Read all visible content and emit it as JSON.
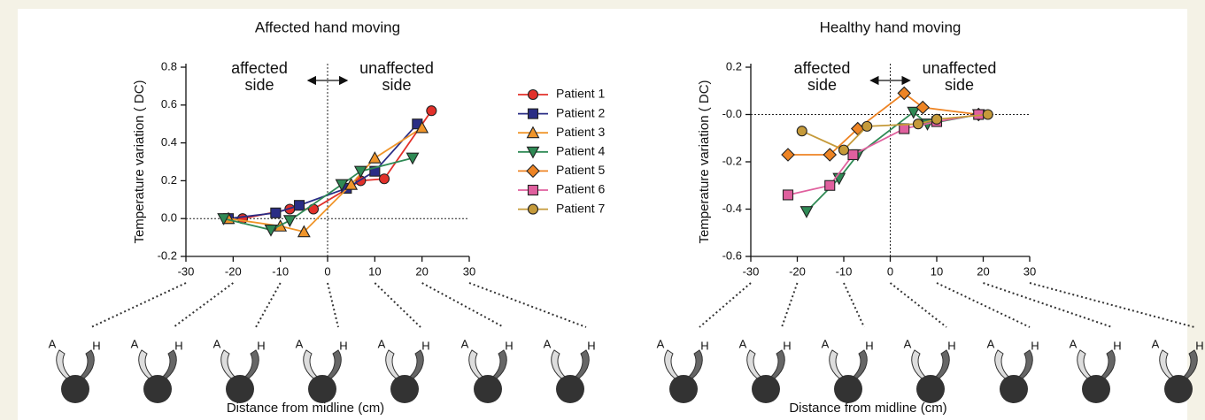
{
  "chart_data": [
    {
      "type": "line",
      "title": "Affected hand moving",
      "x_label": "Distance from midline (cm)",
      "y_label": "Temperature variation ( DC)",
      "annotations": [
        "affected side",
        "unaffected side"
      ],
      "icon_labels": [
        "A",
        "H"
      ],
      "xlim": [
        -30,
        30
      ],
      "xticks": [
        -30,
        -20,
        -10,
        0,
        10,
        20,
        30
      ],
      "ylim": [
        -0.2,
        0.8
      ],
      "yticks": [
        -0.2,
        {
          "value": 0,
          "label": "0.0"
        },
        0.2,
        0.4,
        0.6,
        0.8
      ],
      "series": [
        {
          "name": "Patient 1",
          "color": "#e2302a",
          "marker": "circle",
          "x": [
            -18,
            -8,
            -3,
            7,
            12,
            22
          ],
          "values": [
            0,
            0.05,
            0.05,
            0.2,
            0.21,
            0.57
          ]
        },
        {
          "name": "Patient 2",
          "color": "#2a2d85",
          "marker": "square",
          "x": [
            -21,
            -11,
            -6,
            4,
            10,
            19
          ],
          "values": [
            0,
            0.03,
            0.07,
            0.16,
            0.25,
            0.5
          ]
        },
        {
          "name": "Patient 3",
          "color": "#f0952a",
          "marker": "triangle",
          "x": [
            -21,
            -10,
            -5,
            5,
            10,
            20
          ],
          "values": [
            0,
            -0.04,
            -0.07,
            0.18,
            0.32,
            0.48
          ]
        },
        {
          "name": "Patient 4",
          "color": "#2f8a55",
          "marker": "triangle-down",
          "x": [
            -22,
            -12,
            -8,
            3,
            7,
            18
          ],
          "values": [
            0,
            -0.06,
            -0.01,
            0.18,
            0.25,
            0.32
          ]
        }
      ]
    },
    {
      "type": "line",
      "title": "Healthy hand moving",
      "x_label": "Distance from midline (cm)",
      "y_label": "Temperature variation ( DC)",
      "annotations": [
        "affected side",
        "unaffected side"
      ],
      "icon_labels": [
        "A",
        "H"
      ],
      "xlim": [
        -30,
        30
      ],
      "xticks": [
        -30,
        -20,
        -10,
        0,
        10,
        20,
        30
      ],
      "ylim": [
        -0.6,
        0.2
      ],
      "yticks": [
        -0.6,
        -0.4,
        -0.2,
        {
          "value": 0,
          "label": "-0.0"
        },
        0.2
      ],
      "series": [
        {
          "name": "Patient 4",
          "color": "#2f8a55",
          "marker": "triangle-down",
          "x": [
            -18,
            -11,
            -7,
            5,
            8,
            19
          ],
          "values": [
            -0.41,
            -0.27,
            -0.17,
            0.01,
            -0.04,
            0
          ]
        },
        {
          "name": "Patient 5",
          "color": "#ee8424",
          "marker": "diamond",
          "x": [
            -22,
            -13,
            -7,
            3,
            7,
            19
          ],
          "values": [
            -0.17,
            -0.17,
            -0.06,
            0.09,
            0.03,
            0
          ]
        },
        {
          "name": "Patient 6",
          "color": "#e0609e",
          "marker": "square",
          "x": [
            -22,
            -13,
            -8,
            3,
            10,
            19
          ],
          "values": [
            -0.34,
            -0.3,
            -0.17,
            -0.06,
            -0.03,
            0
          ]
        },
        {
          "name": "Patient 7",
          "color": "#c59a3a",
          "marker": "circle",
          "x": [
            -19,
            -10,
            -5,
            6,
            10,
            21
          ],
          "values": [
            -0.07,
            -0.15,
            -0.05,
            -0.04,
            -0.02,
            0
          ]
        }
      ]
    }
  ]
}
